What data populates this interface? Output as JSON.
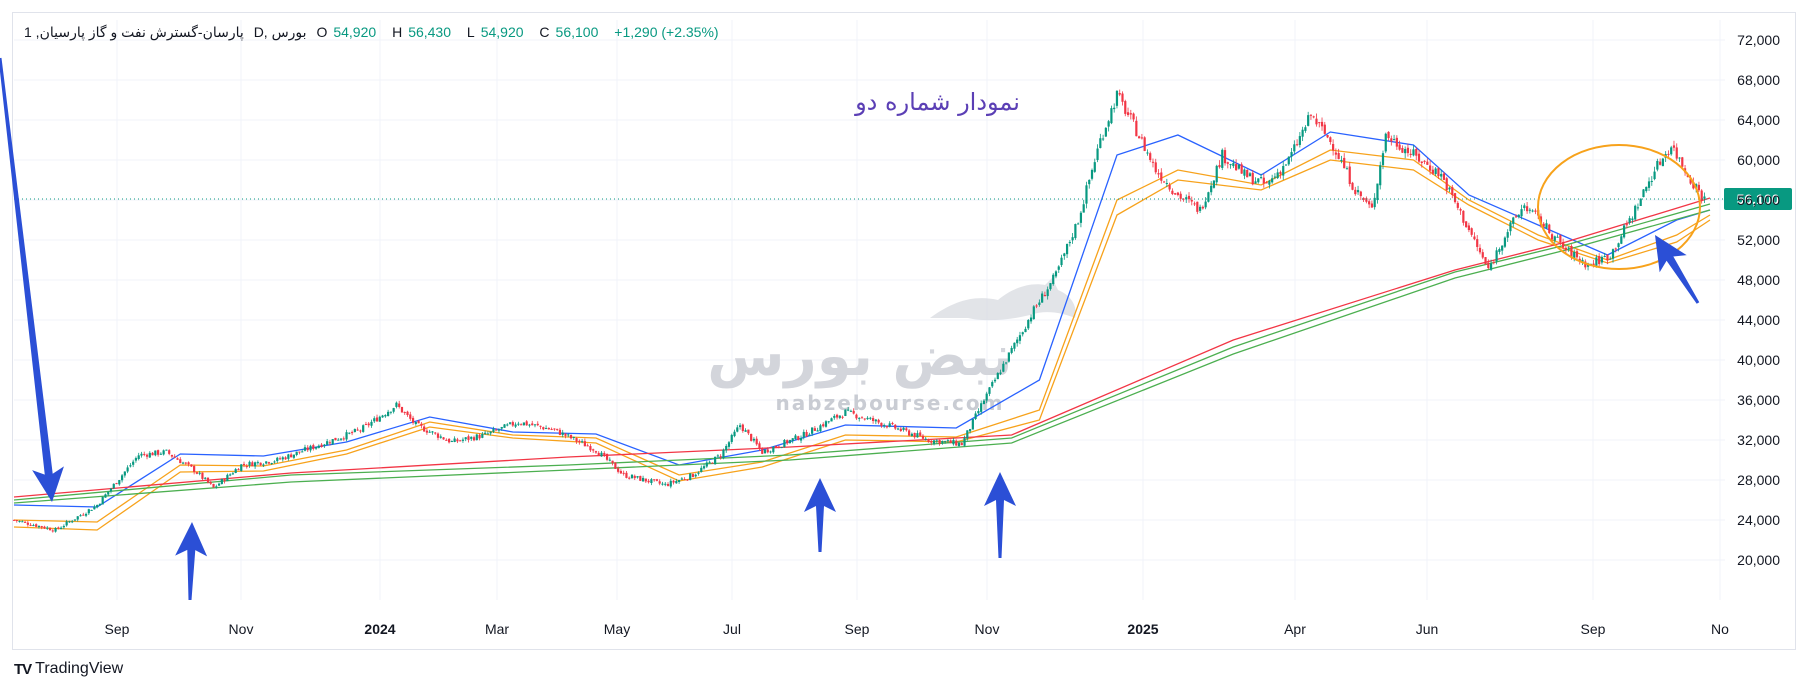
{
  "legend": {
    "symbol": "1 ,پارسان-گسترش نفت و گاز پارسیان",
    "interval_exchange": "D, بورس",
    "open_label": "O",
    "open": "54,920",
    "high_label": "H",
    "high": "56,430",
    "low_label": "L",
    "low": "54,920",
    "close_label": "C",
    "close": "56,100",
    "change": "+1,290 (+2.35%)"
  },
  "annotation_title": "نمودار شماره دو",
  "watermark": {
    "brand": "نبض بورس",
    "url": "nabzebourse.com"
  },
  "footer": {
    "logo": "TV",
    "text": "TradingView"
  },
  "colors": {
    "up": "#089981",
    "down": "#f23645",
    "blue_ma": "#2962ff",
    "orange_ma": "#f7a21b",
    "green_ma": "#4caf50",
    "red_ma": "#f23645",
    "annotation": "#2b4fd6",
    "circle": "#f7a21b",
    "title": "#5b3fb5",
    "price_line": "#089981"
  },
  "chart_data": {
    "type": "candlestick",
    "y_axis": {
      "min": 16000,
      "max": 74000,
      "ticks": [
        "72,000",
        "68,000",
        "64,000",
        "60,000",
        "56,000",
        "52,000",
        "48,000",
        "44,000",
        "40,000",
        "36,000",
        "32,000",
        "28,000",
        "24,000",
        "20,000"
      ]
    },
    "x_axis": {
      "labels": [
        "Sep",
        "Nov",
        "2024",
        "Mar",
        "May",
        "Jul",
        "Sep",
        "Nov",
        "2025",
        "Apr",
        "Jun",
        "Sep",
        "No"
      ],
      "bold": [
        "2024",
        "2025"
      ]
    },
    "current_price": {
      "value": 56100,
      "label": "56,100"
    },
    "key_points": [
      [
        0,
        24000
      ],
      [
        15,
        23000
      ],
      [
        30,
        25500
      ],
      [
        45,
        30500
      ],
      [
        55,
        30800
      ],
      [
        65,
        29000
      ],
      [
        72,
        27200
      ],
      [
        82,
        29500
      ],
      [
        95,
        30000
      ],
      [
        110,
        31500
      ],
      [
        125,
        33000
      ],
      [
        138,
        35500
      ],
      [
        145,
        33500
      ],
      [
        158,
        31800
      ],
      [
        170,
        32500
      ],
      [
        182,
        33800
      ],
      [
        195,
        33000
      ],
      [
        210,
        31000
      ],
      [
        220,
        28500
      ],
      [
        235,
        27500
      ],
      [
        245,
        28500
      ],
      [
        255,
        30500
      ],
      [
        262,
        33500
      ],
      [
        270,
        30800
      ],
      [
        285,
        32500
      ],
      [
        300,
        34800
      ],
      [
        315,
        33500
      ],
      [
        330,
        32000
      ],
      [
        342,
        31600
      ],
      [
        350,
        36000
      ],
      [
        358,
        40000
      ],
      [
        368,
        45000
      ],
      [
        376,
        48500
      ],
      [
        384,
        54000
      ],
      [
        392,
        62000
      ],
      [
        398,
        66500
      ],
      [
        404,
        63500
      ],
      [
        412,
        59000
      ],
      [
        420,
        56500
      ],
      [
        428,
        55000
      ],
      [
        436,
        60500
      ],
      [
        444,
        58500
      ],
      [
        452,
        57500
      ],
      [
        460,
        60000
      ],
      [
        468,
        64500
      ],
      [
        476,
        61500
      ],
      [
        484,
        57000
      ],
      [
        490,
        55000
      ],
      [
        495,
        62500
      ],
      [
        505,
        60500
      ],
      [
        515,
        58500
      ],
      [
        525,
        53000
      ],
      [
        532,
        49000
      ],
      [
        538,
        52500
      ],
      [
        545,
        55500
      ],
      [
        552,
        53500
      ],
      [
        560,
        51000
      ],
      [
        568,
        49500
      ],
      [
        576,
        50500
      ],
      [
        584,
        54500
      ],
      [
        592,
        59000
      ],
      [
        598,
        61500
      ],
      [
        604,
        58500
      ],
      [
        610,
        56100
      ]
    ],
    "moving_averages": [
      {
        "color": "#2962ff",
        "points": [
          [
            0,
            25500
          ],
          [
            30,
            25300
          ],
          [
            60,
            30600
          ],
          [
            90,
            30400
          ],
          [
            120,
            31800
          ],
          [
            150,
            34300
          ],
          [
            180,
            32800
          ],
          [
            210,
            32600
          ],
          [
            240,
            29500
          ],
          [
            270,
            31000
          ],
          [
            300,
            33500
          ],
          [
            340,
            33200
          ],
          [
            370,
            38000
          ],
          [
            398,
            60500
          ],
          [
            420,
            62500
          ],
          [
            450,
            58500
          ],
          [
            475,
            62800
          ],
          [
            505,
            61500
          ],
          [
            525,
            56500
          ],
          [
            550,
            53500
          ],
          [
            575,
            50500
          ],
          [
            600,
            54000
          ],
          [
            612,
            55000
          ]
        ]
      },
      {
        "color": "#f7a21b",
        "points": [
          [
            0,
            24000
          ],
          [
            30,
            23800
          ],
          [
            60,
            29500
          ],
          [
            90,
            29400
          ],
          [
            120,
            31000
          ],
          [
            150,
            33800
          ],
          [
            180,
            32500
          ],
          [
            210,
            32200
          ],
          [
            240,
            28500
          ],
          [
            270,
            29800
          ],
          [
            300,
            32500
          ],
          [
            340,
            32300
          ],
          [
            370,
            35000
          ],
          [
            398,
            56000
          ],
          [
            420,
            59000
          ],
          [
            450,
            57500
          ],
          [
            475,
            61000
          ],
          [
            505,
            60000
          ],
          [
            525,
            56000
          ],
          [
            550,
            52500
          ],
          [
            575,
            50000
          ],
          [
            600,
            52500
          ],
          [
            612,
            54500
          ]
        ]
      },
      {
        "color": "#f7a21b",
        "points": [
          [
            0,
            23300
          ],
          [
            30,
            23000
          ],
          [
            60,
            28800
          ],
          [
            90,
            28900
          ],
          [
            120,
            30600
          ],
          [
            150,
            33300
          ],
          [
            180,
            32200
          ],
          [
            210,
            31700
          ],
          [
            240,
            27900
          ],
          [
            270,
            29300
          ],
          [
            300,
            32000
          ],
          [
            340,
            31800
          ],
          [
            370,
            34000
          ],
          [
            398,
            54500
          ],
          [
            420,
            58000
          ],
          [
            450,
            57000
          ],
          [
            475,
            60000
          ],
          [
            505,
            59000
          ],
          [
            525,
            55500
          ],
          [
            550,
            52000
          ],
          [
            575,
            49700
          ],
          [
            600,
            51800
          ],
          [
            612,
            54000
          ]
        ]
      },
      {
        "color": "#f23645",
        "points": [
          [
            0,
            26300
          ],
          [
            100,
            28700
          ],
          [
            200,
            30300
          ],
          [
            280,
            31300
          ],
          [
            360,
            32500
          ],
          [
            440,
            42000
          ],
          [
            520,
            49000
          ],
          [
            560,
            51800
          ],
          [
            612,
            56200
          ]
        ]
      },
      {
        "color": "#4caf50",
        "points": [
          [
            0,
            26000
          ],
          [
            100,
            28500
          ],
          [
            200,
            29500
          ],
          [
            280,
            30500
          ],
          [
            360,
            32200
          ],
          [
            440,
            41300
          ],
          [
            520,
            48800
          ],
          [
            560,
            51500
          ],
          [
            612,
            55600
          ]
        ]
      },
      {
        "color": "#4caf50",
        "points": [
          [
            0,
            25700
          ],
          [
            100,
            27800
          ],
          [
            200,
            29000
          ],
          [
            280,
            30000
          ],
          [
            360,
            31700
          ],
          [
            440,
            40600
          ],
          [
            520,
            48200
          ],
          [
            560,
            51000
          ],
          [
            612,
            55000
          ]
        ]
      }
    ]
  }
}
